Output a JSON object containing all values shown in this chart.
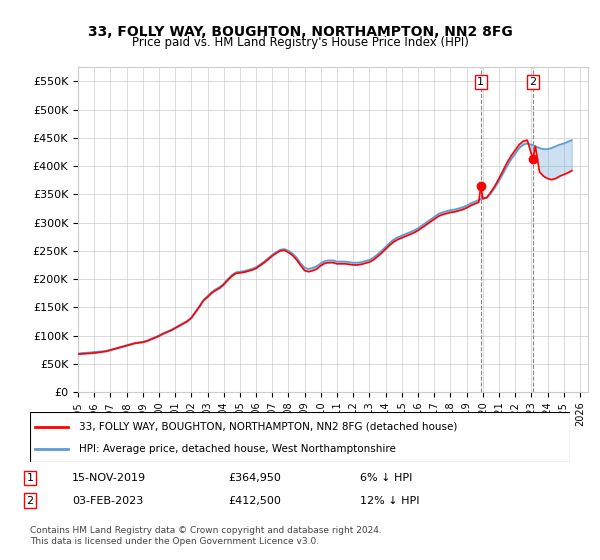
{
  "title": "33, FOLLY WAY, BOUGHTON, NORTHAMPTON, NN2 8FG",
  "subtitle": "Price paid vs. HM Land Registry's House Price Index (HPI)",
  "ylabel_format": "£{0}K",
  "ylim": [
    0,
    575000
  ],
  "yticks": [
    0,
    50000,
    100000,
    150000,
    200000,
    250000,
    300000,
    350000,
    400000,
    450000,
    500000,
    550000
  ],
  "ytick_labels": [
    "£0",
    "£50K",
    "£100K",
    "£150K",
    "£200K",
    "£250K",
    "£300K",
    "£350K",
    "£400K",
    "£450K",
    "£500K",
    "£550K"
  ],
  "xlim_start": 1995.0,
  "xlim_end": 2026.5,
  "xticks": [
    1995,
    1996,
    1997,
    1998,
    1999,
    2000,
    2001,
    2002,
    2003,
    2004,
    2005,
    2006,
    2007,
    2008,
    2009,
    2010,
    2011,
    2012,
    2013,
    2014,
    2015,
    2016,
    2017,
    2018,
    2019,
    2020,
    2021,
    2022,
    2023,
    2024,
    2025,
    2026
  ],
  "hpi_color": "#5b9bd5",
  "price_color": "#FF0000",
  "marker1_x": 2019.88,
  "marker1_y": 364950,
  "marker2_x": 2023.09,
  "marker2_y": 412500,
  "dashed_x1": 2019.88,
  "dashed_x2": 2023.09,
  "legend_label1": "33, FOLLY WAY, BOUGHTON, NORTHAMPTON, NN2 8FG (detached house)",
  "legend_label2": "HPI: Average price, detached house, West Northamptonshire",
  "annotation1_num": "1",
  "annotation1_date": "15-NOV-2019",
  "annotation1_price": "£364,950",
  "annotation1_pct": "6% ↓ HPI",
  "annotation2_num": "2",
  "annotation2_date": "03-FEB-2023",
  "annotation2_price": "£412,500",
  "annotation2_pct": "12% ↓ HPI",
  "footer": "Contains HM Land Registry data © Crown copyright and database right 2024.\nThis data is licensed under the Open Government Licence v3.0.",
  "hpi_data": [
    [
      1995.0,
      68000
    ],
    [
      1995.25,
      69000
    ],
    [
      1995.5,
      69500
    ],
    [
      1995.75,
      70000
    ],
    [
      1996.0,
      71000
    ],
    [
      1996.25,
      71500
    ],
    [
      1996.5,
      72000
    ],
    [
      1996.75,
      73000
    ],
    [
      1997.0,
      75000
    ],
    [
      1997.25,
      77000
    ],
    [
      1997.5,
      79000
    ],
    [
      1997.75,
      81000
    ],
    [
      1998.0,
      83000
    ],
    [
      1998.25,
      85000
    ],
    [
      1998.5,
      87000
    ],
    [
      1998.75,
      88000
    ],
    [
      1999.0,
      89000
    ],
    [
      1999.25,
      91000
    ],
    [
      1999.5,
      94000
    ],
    [
      1999.75,
      97000
    ],
    [
      2000.0,
      100000
    ],
    [
      2000.25,
      104000
    ],
    [
      2000.5,
      107000
    ],
    [
      2000.75,
      110000
    ],
    [
      2001.0,
      114000
    ],
    [
      2001.25,
      118000
    ],
    [
      2001.5,
      122000
    ],
    [
      2001.75,
      126000
    ],
    [
      2002.0,
      132000
    ],
    [
      2002.25,
      142000
    ],
    [
      2002.5,
      152000
    ],
    [
      2002.75,
      163000
    ],
    [
      2003.0,
      170000
    ],
    [
      2003.25,
      177000
    ],
    [
      2003.5,
      182000
    ],
    [
      2003.75,
      186000
    ],
    [
      2004.0,
      192000
    ],
    [
      2004.25,
      200000
    ],
    [
      2004.5,
      207000
    ],
    [
      2004.75,
      212000
    ],
    [
      2005.0,
      213000
    ],
    [
      2005.25,
      214000
    ],
    [
      2005.5,
      216000
    ],
    [
      2005.75,
      218000
    ],
    [
      2006.0,
      221000
    ],
    [
      2006.25,
      226000
    ],
    [
      2006.5,
      231000
    ],
    [
      2006.75,
      237000
    ],
    [
      2007.0,
      243000
    ],
    [
      2007.25,
      248000
    ],
    [
      2007.5,
      252000
    ],
    [
      2007.75,
      253000
    ],
    [
      2008.0,
      250000
    ],
    [
      2008.25,
      245000
    ],
    [
      2008.5,
      238000
    ],
    [
      2008.75,
      228000
    ],
    [
      2009.0,
      220000
    ],
    [
      2009.25,
      218000
    ],
    [
      2009.5,
      220000
    ],
    [
      2009.75,
      223000
    ],
    [
      2010.0,
      228000
    ],
    [
      2010.25,
      232000
    ],
    [
      2010.5,
      233000
    ],
    [
      2010.75,
      233000
    ],
    [
      2011.0,
      231000
    ],
    [
      2011.25,
      231000
    ],
    [
      2011.5,
      231000
    ],
    [
      2011.75,
      230000
    ],
    [
      2012.0,
      229000
    ],
    [
      2012.25,
      229000
    ],
    [
      2012.5,
      230000
    ],
    [
      2012.75,
      232000
    ],
    [
      2013.0,
      234000
    ],
    [
      2013.25,
      238000
    ],
    [
      2013.5,
      244000
    ],
    [
      2013.75,
      250000
    ],
    [
      2014.0,
      257000
    ],
    [
      2014.25,
      264000
    ],
    [
      2014.5,
      270000
    ],
    [
      2014.75,
      274000
    ],
    [
      2015.0,
      277000
    ],
    [
      2015.25,
      280000
    ],
    [
      2015.5,
      283000
    ],
    [
      2015.75,
      286000
    ],
    [
      2016.0,
      290000
    ],
    [
      2016.25,
      295000
    ],
    [
      2016.5,
      300000
    ],
    [
      2016.75,
      305000
    ],
    [
      2017.0,
      310000
    ],
    [
      2017.25,
      315000
    ],
    [
      2017.5,
      318000
    ],
    [
      2017.75,
      320000
    ],
    [
      2018.0,
      322000
    ],
    [
      2018.25,
      323000
    ],
    [
      2018.5,
      325000
    ],
    [
      2018.75,
      327000
    ],
    [
      2019.0,
      330000
    ],
    [
      2019.25,
      334000
    ],
    [
      2019.5,
      337000
    ],
    [
      2019.75,
      340000
    ],
    [
      2020.0,
      343000
    ],
    [
      2020.25,
      345000
    ],
    [
      2020.5,
      352000
    ],
    [
      2020.75,
      362000
    ],
    [
      2021.0,
      374000
    ],
    [
      2021.25,
      387000
    ],
    [
      2021.5,
      400000
    ],
    [
      2021.75,
      412000
    ],
    [
      2022.0,
      422000
    ],
    [
      2022.25,
      432000
    ],
    [
      2022.5,
      438000
    ],
    [
      2022.75,
      440000
    ],
    [
      2023.0,
      438000
    ],
    [
      2023.25,
      435000
    ],
    [
      2023.5,
      432000
    ],
    [
      2023.75,
      430000
    ],
    [
      2024.0,
      430000
    ],
    [
      2024.25,
      432000
    ],
    [
      2024.5,
      435000
    ],
    [
      2024.75,
      438000
    ],
    [
      2025.0,
      440000
    ],
    [
      2025.25,
      443000
    ],
    [
      2025.5,
      446000
    ]
  ],
  "price_data": [
    [
      1995.0,
      67000
    ],
    [
      1995.25,
      67500
    ],
    [
      1995.5,
      68000
    ],
    [
      1995.75,
      68500
    ],
    [
      1996.0,
      69000
    ],
    [
      1996.25,
      70000
    ],
    [
      1996.5,
      71000
    ],
    [
      1996.75,
      72000
    ],
    [
      1997.0,
      74000
    ],
    [
      1997.25,
      76000
    ],
    [
      1997.5,
      78000
    ],
    [
      1997.75,
      80000
    ],
    [
      1998.0,
      82000
    ],
    [
      1998.25,
      84000
    ],
    [
      1998.5,
      86000
    ],
    [
      1998.75,
      87000
    ],
    [
      1999.0,
      88000
    ],
    [
      1999.25,
      90000
    ],
    [
      1999.5,
      93000
    ],
    [
      1999.75,
      96000
    ],
    [
      2000.0,
      99000
    ],
    [
      2000.25,
      103000
    ],
    [
      2000.5,
      106000
    ],
    [
      2000.75,
      109000
    ],
    [
      2001.0,
      113000
    ],
    [
      2001.25,
      117000
    ],
    [
      2001.5,
      121000
    ],
    [
      2001.75,
      125000
    ],
    [
      2002.0,
      131000
    ],
    [
      2002.25,
      141000
    ],
    [
      2002.5,
      151000
    ],
    [
      2002.75,
      162000
    ],
    [
      2003.0,
      168000
    ],
    [
      2003.25,
      175000
    ],
    [
      2003.5,
      180000
    ],
    [
      2003.75,
      184000
    ],
    [
      2004.0,
      190000
    ],
    [
      2004.25,
      198000
    ],
    [
      2004.5,
      205000
    ],
    [
      2004.75,
      210000
    ],
    [
      2005.0,
      211000
    ],
    [
      2005.25,
      212000
    ],
    [
      2005.5,
      214000
    ],
    [
      2005.75,
      216000
    ],
    [
      2006.0,
      219000
    ],
    [
      2006.25,
      224000
    ],
    [
      2006.5,
      229000
    ],
    [
      2006.75,
      235000
    ],
    [
      2007.0,
      241000
    ],
    [
      2007.25,
      246000
    ],
    [
      2007.5,
      250000
    ],
    [
      2007.75,
      251000
    ],
    [
      2008.0,
      247000
    ],
    [
      2008.25,
      242000
    ],
    [
      2008.5,
      234000
    ],
    [
      2008.75,
      224000
    ],
    [
      2009.0,
      215000
    ],
    [
      2009.25,
      213000
    ],
    [
      2009.5,
      215000
    ],
    [
      2009.75,
      218000
    ],
    [
      2010.0,
      224000
    ],
    [
      2010.25,
      228000
    ],
    [
      2010.5,
      229000
    ],
    [
      2010.75,
      229000
    ],
    [
      2011.0,
      227000
    ],
    [
      2011.25,
      227000
    ],
    [
      2011.5,
      227000
    ],
    [
      2011.75,
      226000
    ],
    [
      2012.0,
      225000
    ],
    [
      2012.25,
      225000
    ],
    [
      2012.5,
      226000
    ],
    [
      2012.75,
      228000
    ],
    [
      2013.0,
      230000
    ],
    [
      2013.25,
      234000
    ],
    [
      2013.5,
      240000
    ],
    [
      2013.75,
      246000
    ],
    [
      2014.0,
      253000
    ],
    [
      2014.25,
      260000
    ],
    [
      2014.5,
      266000
    ],
    [
      2014.75,
      270000
    ],
    [
      2015.0,
      273000
    ],
    [
      2015.25,
      276000
    ],
    [
      2015.5,
      279000
    ],
    [
      2015.75,
      282000
    ],
    [
      2016.0,
      286000
    ],
    [
      2016.25,
      291000
    ],
    [
      2016.5,
      296000
    ],
    [
      2016.75,
      301000
    ],
    [
      2017.0,
      306000
    ],
    [
      2017.25,
      311000
    ],
    [
      2017.5,
      314000
    ],
    [
      2017.75,
      316000
    ],
    [
      2018.0,
      318000
    ],
    [
      2018.25,
      319000
    ],
    [
      2018.5,
      321000
    ],
    [
      2018.75,
      323000
    ],
    [
      2019.0,
      326000
    ],
    [
      2019.25,
      330000
    ],
    [
      2019.5,
      333000
    ],
    [
      2019.75,
      336000
    ],
    [
      2019.88,
      364950
    ],
    [
      2020.0,
      342000
    ],
    [
      2020.25,
      344000
    ],
    [
      2020.5,
      354000
    ],
    [
      2020.75,
      365000
    ],
    [
      2021.0,
      378000
    ],
    [
      2021.25,
      392000
    ],
    [
      2021.5,
      406000
    ],
    [
      2021.75,
      418000
    ],
    [
      2022.0,
      428000
    ],
    [
      2022.25,
      438000
    ],
    [
      2022.5,
      444000
    ],
    [
      2022.75,
      446000
    ],
    [
      2023.09,
      412500
    ],
    [
      2023.25,
      435000
    ],
    [
      2023.5,
      390000
    ],
    [
      2023.75,
      382000
    ],
    [
      2024.0,
      378000
    ],
    [
      2024.25,
      376000
    ],
    [
      2024.5,
      378000
    ],
    [
      2024.75,
      382000
    ],
    [
      2025.0,
      385000
    ],
    [
      2025.25,
      388000
    ],
    [
      2025.5,
      392000
    ]
  ]
}
